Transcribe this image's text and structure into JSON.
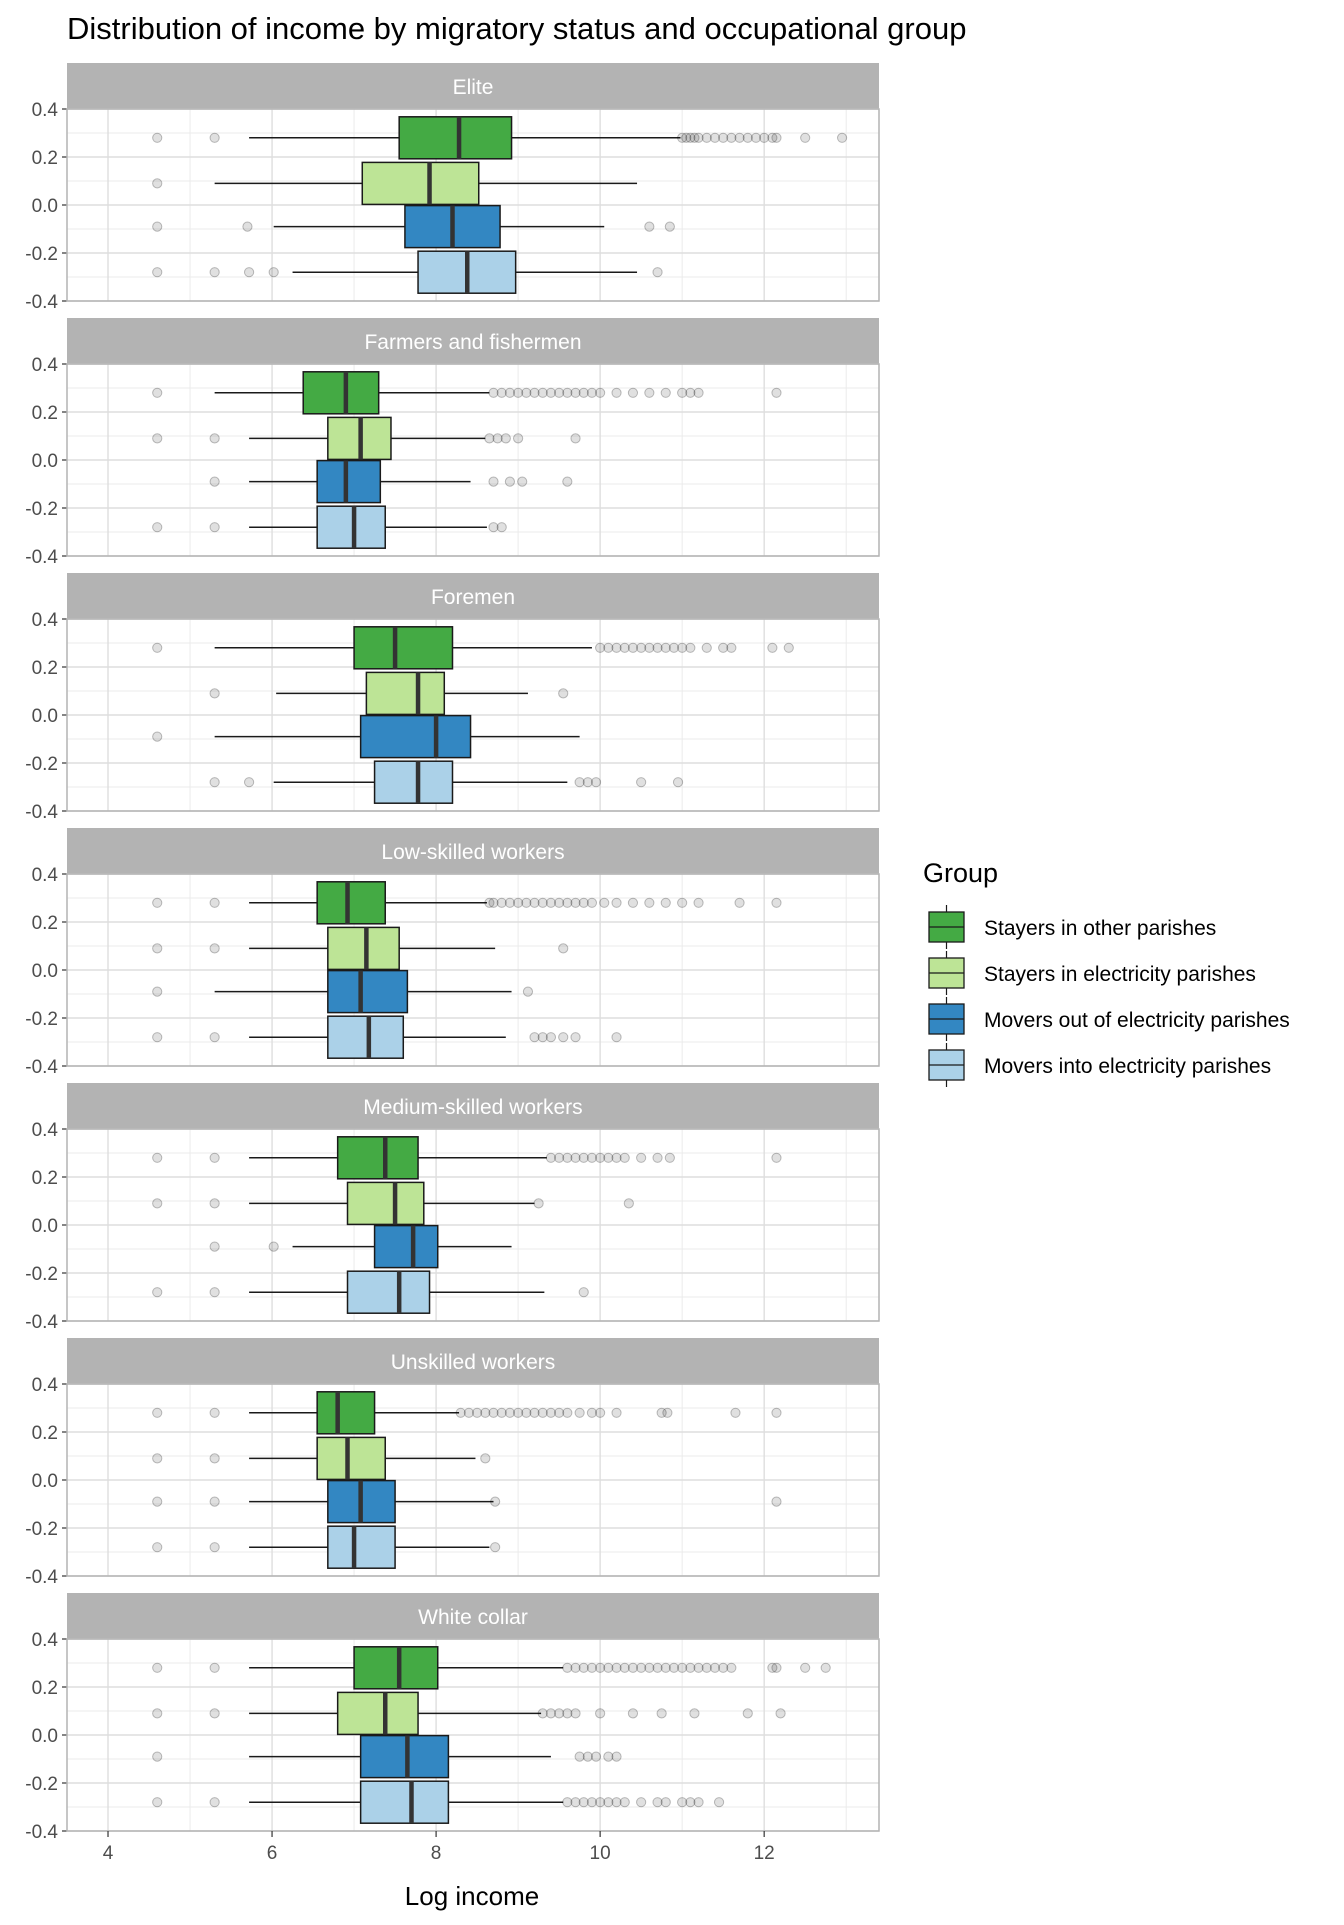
{
  "chart_data": {
    "type": "boxplot",
    "title": "Distribution of income by migratory status and occupational group",
    "xlabel": "Log income",
    "ylabel": "",
    "xlim": [
      3.5,
      13.4
    ],
    "xticks": [
      4,
      6,
      8,
      10,
      12
    ],
    "ylim": [
      -0.4,
      0.4
    ],
    "yticks": [
      "0.4",
      "0.2",
      "0.0",
      "-0.2",
      "-0.4"
    ],
    "grid": true,
    "legend": {
      "title": "Group",
      "position": "right",
      "items": [
        {
          "label": "Stayers in other parishes",
          "color": "#44AA44"
        },
        {
          "label": "Stayers in electricity parishes",
          "color": "#BDE496"
        },
        {
          "label": "Movers out of electricity parishes",
          "color": "#3387C2"
        },
        {
          "label": "Movers into electricity parishes",
          "color": "#ABD1E8"
        }
      ]
    },
    "panels": [
      {
        "name": "Elite",
        "boxes": [
          {
            "q1": 7.55,
            "median": 8.28,
            "q3": 8.92,
            "wlo": 5.72,
            "whi": 10.98,
            "out": [
              4.6,
              5.3,
              11.0,
              11.05,
              11.1,
              11.15,
              11.2,
              11.3,
              11.4,
              11.5,
              11.6,
              11.7,
              11.8,
              11.9,
              12.0,
              12.1,
              12.15,
              12.5,
              12.95
            ]
          },
          {
            "q1": 7.1,
            "median": 7.92,
            "q3": 8.52,
            "wlo": 5.3,
            "whi": 10.45,
            "out": [
              4.6
            ]
          },
          {
            "q1": 7.62,
            "median": 8.2,
            "q3": 8.78,
            "wlo": 6.02,
            "whi": 10.05,
            "out": [
              4.6,
              5.7,
              10.6,
              10.85
            ]
          },
          {
            "q1": 7.78,
            "median": 8.38,
            "q3": 8.97,
            "wlo": 6.25,
            "whi": 10.45,
            "out": [
              4.6,
              5.3,
              5.72,
              6.02,
              10.7
            ]
          }
        ]
      },
      {
        "name": "Farmers and fishermen",
        "boxes": [
          {
            "q1": 6.38,
            "median": 6.9,
            "q3": 7.3,
            "wlo": 5.3,
            "whi": 8.65,
            "out": [
              4.6,
              8.7,
              8.8,
              8.9,
              9.0,
              9.1,
              9.2,
              9.3,
              9.4,
              9.5,
              9.6,
              9.7,
              9.8,
              9.9,
              10.0,
              10.2,
              10.4,
              10.6,
              10.8,
              11.0,
              11.1,
              11.2,
              12.15
            ]
          },
          {
            "q1": 6.68,
            "median": 7.08,
            "q3": 7.45,
            "wlo": 5.72,
            "whi": 8.6,
            "out": [
              4.6,
              5.3,
              8.65,
              8.75,
              8.85,
              9.0,
              9.7
            ]
          },
          {
            "q1": 6.55,
            "median": 6.9,
            "q3": 7.32,
            "wlo": 5.72,
            "whi": 8.42,
            "out": [
              5.3,
              8.7,
              8.9,
              9.05,
              9.6
            ]
          },
          {
            "q1": 6.55,
            "median": 7.0,
            "q3": 7.38,
            "wlo": 5.72,
            "whi": 8.62,
            "out": [
              4.6,
              5.3,
              8.7,
              8.8
            ]
          }
        ]
      },
      {
        "name": "Foremen",
        "boxes": [
          {
            "q1": 7.0,
            "median": 7.5,
            "q3": 8.2,
            "wlo": 5.3,
            "whi": 9.9,
            "out": [
              4.6,
              10.0,
              10.1,
              10.2,
              10.3,
              10.4,
              10.5,
              10.6,
              10.7,
              10.8,
              10.9,
              11.0,
              11.1,
              11.3,
              11.5,
              11.6,
              12.1,
              12.3
            ]
          },
          {
            "q1": 7.15,
            "median": 7.78,
            "q3": 8.1,
            "wlo": 6.05,
            "whi": 9.12,
            "out": [
              5.3,
              9.55
            ]
          },
          {
            "q1": 7.08,
            "median": 8.0,
            "q3": 8.42,
            "wlo": 5.3,
            "whi": 9.75,
            "out": [
              4.6
            ]
          },
          {
            "q1": 7.25,
            "median": 7.78,
            "q3": 8.2,
            "wlo": 6.02,
            "whi": 9.6,
            "out": [
              5.3,
              5.72,
              9.75,
              9.85,
              9.95,
              10.5,
              10.95
            ]
          }
        ]
      },
      {
        "name": "Low-skilled workers",
        "boxes": [
          {
            "q1": 6.55,
            "median": 6.92,
            "q3": 7.38,
            "wlo": 5.72,
            "whi": 8.62,
            "out": [
              4.6,
              5.3,
              8.65,
              8.7,
              8.8,
              8.9,
              9.0,
              9.1,
              9.2,
              9.3,
              9.4,
              9.5,
              9.6,
              9.7,
              9.8,
              9.9,
              10.05,
              10.2,
              10.4,
              10.6,
              10.8,
              11.0,
              11.2,
              11.7,
              12.15
            ]
          },
          {
            "q1": 6.68,
            "median": 7.15,
            "q3": 7.55,
            "wlo": 5.72,
            "whi": 8.72,
            "out": [
              4.6,
              5.3,
              9.55
            ]
          },
          {
            "q1": 6.68,
            "median": 7.08,
            "q3": 7.65,
            "wlo": 5.3,
            "whi": 8.92,
            "out": [
              4.6,
              9.12
            ]
          },
          {
            "q1": 6.68,
            "median": 7.18,
            "q3": 7.6,
            "wlo": 5.72,
            "whi": 8.85,
            "out": [
              4.6,
              5.3,
              9.2,
              9.3,
              9.4,
              9.55,
              9.7,
              10.2
            ]
          }
        ]
      },
      {
        "name": "Medium-skilled workers",
        "boxes": [
          {
            "q1": 6.8,
            "median": 7.38,
            "q3": 7.78,
            "wlo": 5.72,
            "whi": 9.35,
            "out": [
              4.6,
              5.3,
              9.4,
              9.5,
              9.6,
              9.7,
              9.8,
              9.9,
              10.0,
              10.1,
              10.2,
              10.3,
              10.5,
              10.7,
              10.85,
              12.15
            ]
          },
          {
            "q1": 6.92,
            "median": 7.5,
            "q3": 7.85,
            "wlo": 5.72,
            "whi": 9.2,
            "out": [
              4.6,
              5.3,
              9.25,
              10.35
            ]
          },
          {
            "q1": 7.25,
            "median": 7.72,
            "q3": 8.02,
            "wlo": 6.25,
            "whi": 8.92,
            "out": [
              5.3,
              6.02
            ]
          },
          {
            "q1": 6.92,
            "median": 7.55,
            "q3": 7.92,
            "wlo": 5.72,
            "whi": 9.32,
            "out": [
              4.6,
              5.3,
              9.8
            ]
          }
        ]
      },
      {
        "name": "Unskilled workers",
        "boxes": [
          {
            "q1": 6.55,
            "median": 6.8,
            "q3": 7.25,
            "wlo": 5.72,
            "whi": 8.28,
            "out": [
              4.6,
              5.3,
              8.3,
              8.4,
              8.5,
              8.6,
              8.7,
              8.8,
              8.9,
              9.0,
              9.1,
              9.2,
              9.3,
              9.4,
              9.5,
              9.6,
              9.75,
              9.9,
              10.0,
              10.2,
              10.75,
              10.82,
              11.65,
              12.15
            ]
          },
          {
            "q1": 6.55,
            "median": 6.92,
            "q3": 7.38,
            "wlo": 5.72,
            "whi": 8.48,
            "out": [
              4.6,
              5.3,
              8.6
            ]
          },
          {
            "q1": 6.68,
            "median": 7.08,
            "q3": 7.5,
            "wlo": 5.72,
            "whi": 8.7,
            "out": [
              4.6,
              5.3,
              8.72,
              12.15
            ]
          },
          {
            "q1": 6.68,
            "median": 7.0,
            "q3": 7.5,
            "wlo": 5.72,
            "whi": 8.65,
            "out": [
              4.6,
              5.3,
              8.72
            ]
          }
        ]
      },
      {
        "name": "White collar",
        "boxes": [
          {
            "q1": 7.0,
            "median": 7.55,
            "q3": 8.02,
            "wlo": 5.72,
            "whi": 9.55,
            "out": [
              4.6,
              5.3,
              9.6,
              9.7,
              9.8,
              9.9,
              10.0,
              10.1,
              10.2,
              10.3,
              10.4,
              10.5,
              10.6,
              10.7,
              10.8,
              10.9,
              11.0,
              11.1,
              11.2,
              11.3,
              11.4,
              11.5,
              11.6,
              12.1,
              12.15,
              12.5,
              12.75
            ]
          },
          {
            "q1": 6.8,
            "median": 7.38,
            "q3": 7.78,
            "wlo": 5.72,
            "whi": 9.28,
            "out": [
              4.6,
              5.3,
              9.3,
              9.4,
              9.5,
              9.6,
              9.7,
              10.0,
              10.4,
              10.75,
              11.15,
              11.8,
              12.2
            ]
          },
          {
            "q1": 7.08,
            "median": 7.65,
            "q3": 8.15,
            "wlo": 5.72,
            "whi": 9.4,
            "out": [
              4.6,
              9.75,
              9.85,
              9.95,
              10.1,
              10.2
            ]
          },
          {
            "q1": 7.08,
            "median": 7.7,
            "q3": 8.15,
            "wlo": 5.72,
            "whi": 9.55,
            "out": [
              4.6,
              5.3,
              9.6,
              9.7,
              9.8,
              9.9,
              10.0,
              10.1,
              10.2,
              10.3,
              10.5,
              10.7,
              10.8,
              11.0,
              11.1,
              11.2,
              11.45
            ]
          }
        ]
      }
    ]
  }
}
